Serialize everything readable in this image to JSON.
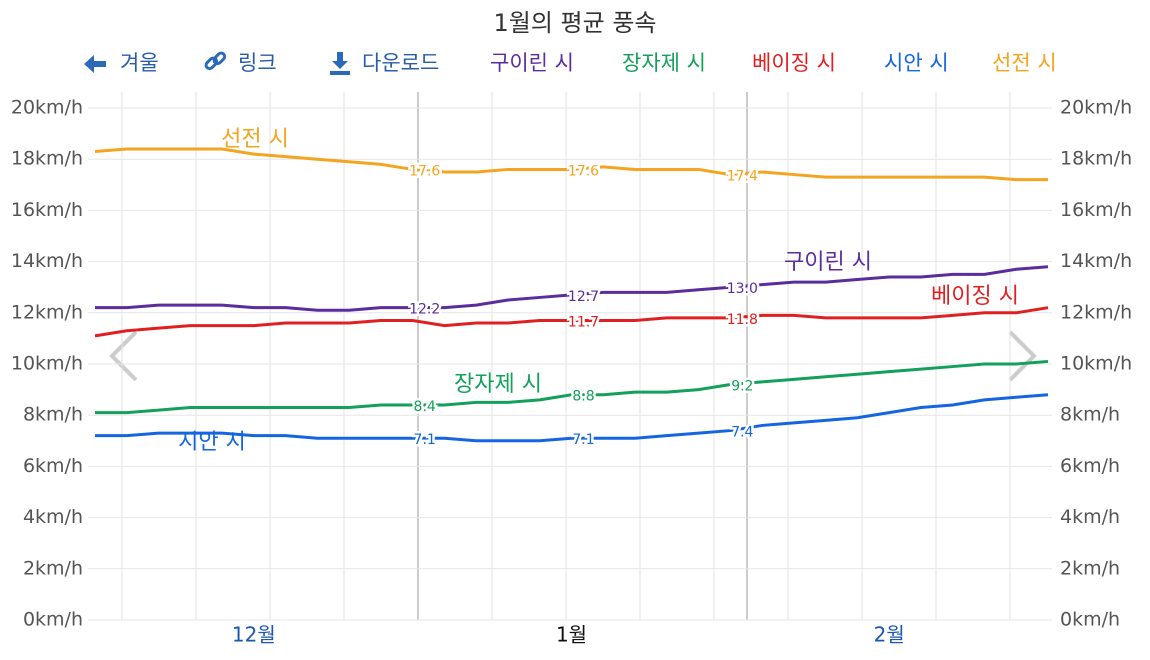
{
  "chart_data": {
    "type": "line",
    "title": "1월의 평균 풍속",
    "toolbar": [
      "겨울",
      "링크",
      "다운로드"
    ],
    "categories": [
      null,
      null,
      null,
      null,
      null,
      "12월",
      null,
      null,
      null,
      null,
      null,
      null,
      null,
      null,
      null,
      "1월",
      null,
      null,
      null,
      null,
      null,
      null,
      null,
      null,
      null,
      "2월",
      null,
      null,
      null,
      null,
      null
    ],
    "ylim": [
      0,
      20
    ],
    "yticks": [
      {
        "value": 0,
        "label": "0km/h"
      },
      {
        "value": 2,
        "label": "2km/h"
      },
      {
        "value": 4,
        "label": "4km/h"
      },
      {
        "value": 6,
        "label": "6km/h"
      },
      {
        "value": 8,
        "label": "8km/h"
      },
      {
        "value": 10,
        "label": "10km/h"
      },
      {
        "value": 12,
        "label": "12km/h"
      },
      {
        "value": 14,
        "label": "14km/h"
      },
      {
        "value": 16,
        "label": "16km/h"
      },
      {
        "value": 18,
        "label": "18km/h"
      },
      {
        "value": 20,
        "label": "20km/h"
      }
    ],
    "grid": true,
    "series": [
      {
        "name": "구이린 시",
        "color": "#5b2d9c",
        "values": [
          12.2,
          12.2,
          12.3,
          12.3,
          12.3,
          12.2,
          12.2,
          12.1,
          12.1,
          12.2,
          12.2,
          12.2,
          12.3,
          12.5,
          12.6,
          12.7,
          12.8,
          12.8,
          12.8,
          12.9,
          13.0,
          13.1,
          13.2,
          13.2,
          13.3,
          13.4,
          13.4,
          13.5,
          13.5,
          13.7,
          13.8
        ],
        "value_labels": [
          null,
          null,
          null,
          null,
          null,
          null,
          null,
          null,
          null,
          null,
          "12.2",
          null,
          null,
          null,
          null,
          "12.7",
          null,
          null,
          null,
          null,
          "13.0",
          null,
          null,
          null,
          null,
          null,
          null,
          null,
          null,
          null,
          null
        ]
      },
      {
        "name": "장자제 시",
        "color": "#12a05a",
        "values": [
          8.1,
          8.1,
          8.2,
          8.3,
          8.3,
          8.3,
          8.3,
          8.3,
          8.3,
          8.4,
          8.4,
          8.4,
          8.5,
          8.5,
          8.6,
          8.8,
          8.8,
          8.9,
          8.9,
          9.0,
          9.2,
          9.3,
          9.4,
          9.5,
          9.6,
          9.7,
          9.8,
          9.9,
          10.0,
          10.0,
          10.1
        ],
        "value_labels": [
          null,
          null,
          null,
          null,
          null,
          null,
          null,
          null,
          null,
          null,
          "8.4",
          null,
          null,
          null,
          null,
          "8.8",
          null,
          null,
          null,
          null,
          "9.2",
          null,
          null,
          null,
          null,
          null,
          null,
          null,
          null,
          null,
          null
        ]
      },
      {
        "name": "베이징 시",
        "color": "#e02020",
        "values": [
          11.1,
          11.3,
          11.4,
          11.5,
          11.5,
          11.5,
          11.6,
          11.6,
          11.6,
          11.7,
          11.7,
          11.5,
          11.6,
          11.6,
          11.7,
          11.7,
          11.7,
          11.7,
          11.8,
          11.8,
          11.8,
          11.9,
          11.9,
          11.8,
          11.8,
          11.8,
          11.8,
          11.9,
          12.0,
          12.0,
          12.2
        ],
        "value_labels": [
          null,
          null,
          null,
          null,
          null,
          null,
          null,
          null,
          null,
          null,
          null,
          null,
          null,
          null,
          null,
          "11.7",
          null,
          null,
          null,
          null,
          "11.8",
          null,
          null,
          null,
          null,
          null,
          null,
          null,
          null,
          null,
          null
        ]
      },
      {
        "name": "시안 시",
        "color": "#1565e0",
        "values": [
          7.2,
          7.2,
          7.3,
          7.3,
          7.3,
          7.2,
          7.2,
          7.1,
          7.1,
          7.1,
          7.1,
          7.1,
          7.0,
          7.0,
          7.0,
          7.1,
          7.1,
          7.1,
          7.2,
          7.3,
          7.4,
          7.6,
          7.7,
          7.8,
          7.9,
          8.1,
          8.3,
          8.4,
          8.6,
          8.7,
          8.8
        ],
        "value_labels": [
          null,
          null,
          null,
          null,
          null,
          null,
          null,
          null,
          null,
          null,
          "7.1",
          null,
          null,
          null,
          null,
          "7.1",
          null,
          null,
          null,
          null,
          "7.4",
          null,
          null,
          null,
          null,
          null,
          null,
          null,
          null,
          null,
          null
        ]
      },
      {
        "name": "선전 시",
        "color": "#f4a41f",
        "values": [
          18.3,
          18.4,
          18.4,
          18.4,
          18.4,
          18.2,
          18.1,
          18.0,
          17.9,
          17.8,
          17.6,
          17.5,
          17.5,
          17.6,
          17.6,
          17.6,
          17.7,
          17.6,
          17.6,
          17.6,
          17.4,
          17.5,
          17.4,
          17.3,
          17.3,
          17.3,
          17.3,
          17.3,
          17.3,
          17.2,
          17.2
        ],
        "value_labels": [
          null,
          null,
          null,
          null,
          null,
          null,
          null,
          null,
          null,
          null,
          "17.6",
          null,
          null,
          null,
          null,
          "17.6",
          null,
          null,
          null,
          null,
          "17.4",
          null,
          null,
          null,
          null,
          null,
          null,
          null,
          null,
          null,
          null
        ]
      }
    ]
  }
}
